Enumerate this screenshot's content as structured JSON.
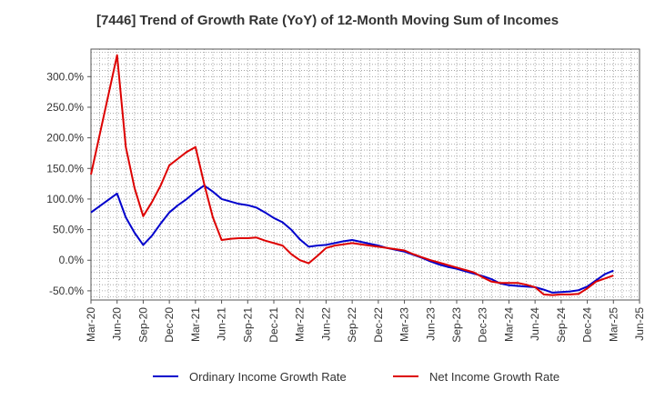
{
  "chart_data": {
    "type": "line",
    "title": "[7446]  Trend of Growth Rate (YoY) of 12-Month Moving Sum of Incomes",
    "x_tick_labels": [
      "Mar-20",
      "Jun-20",
      "Sep-20",
      "Dec-20",
      "Mar-21",
      "Jun-21",
      "Sep-21",
      "Dec-21",
      "Mar-22",
      "Jun-22",
      "Sep-22",
      "Dec-22",
      "Mar-23",
      "Jun-23",
      "Sep-23",
      "Dec-23",
      "Mar-24",
      "Jun-24",
      "Sep-24",
      "Dec-24",
      "Mar-25",
      "Jun-25"
    ],
    "y_ticks": [
      -50,
      0,
      50,
      100,
      150,
      200,
      250,
      300
    ],
    "y_tick_labels": [
      "-50.0%",
      "0.0%",
      "50.0%",
      "100.0%",
      "150.0%",
      "200.0%",
      "250.0%",
      "300.0%"
    ],
    "ylim": [
      -65,
      345
    ],
    "grid": true,
    "legend_position": "bottom",
    "series": [
      {
        "name": "Ordinary Income Growth Rate",
        "color": "#0000cc",
        "x": [
          0,
          3,
          4,
          5,
          6,
          7,
          8,
          9,
          10,
          11,
          12,
          13,
          14,
          15,
          16,
          17,
          18,
          19,
          20,
          21,
          22,
          23,
          24,
          25,
          26,
          27,
          28,
          29,
          30,
          31,
          32,
          33,
          34,
          35,
          36,
          37,
          38,
          39,
          40,
          41,
          42,
          43,
          44,
          45,
          46,
          47,
          48,
          49,
          50,
          51,
          52,
          53,
          54,
          55,
          56,
          57,
          58,
          59,
          60
        ],
        "values": [
          78,
          109,
          70,
          45,
          25,
          40,
          60,
          78,
          90,
          100,
          112,
          122,
          112,
          100,
          96,
          92,
          90,
          86,
          78,
          69,
          62,
          50,
          34,
          22,
          24,
          25,
          28,
          31,
          33,
          30,
          27,
          24,
          20,
          17,
          14,
          9,
          4,
          -2,
          -7,
          -11,
          -14,
          -18,
          -22,
          -26,
          -31,
          -38,
          -41,
          -42,
          -43,
          -44,
          -48,
          -53,
          -52,
          -51,
          -49,
          -43,
          -33,
          -23,
          -17
        ]
      },
      {
        "name": "Net Income Growth Rate",
        "color": "#dd0000",
        "x": [
          0,
          3,
          4,
          5,
          6,
          7,
          8,
          9,
          10,
          11,
          12,
          13,
          14,
          15,
          16,
          17,
          18,
          19,
          20,
          21,
          22,
          23,
          24,
          25,
          26,
          27,
          28,
          29,
          30,
          31,
          32,
          33,
          34,
          35,
          36,
          37,
          38,
          39,
          40,
          41,
          42,
          43,
          44,
          45,
          46,
          47,
          48,
          49,
          50,
          51,
          52,
          53,
          54,
          55,
          56,
          57,
          58,
          59,
          60
        ],
        "values": [
          140,
          335,
          185,
          118,
          72,
          95,
          122,
          155,
          166,
          177,
          185,
          125,
          70,
          33,
          35,
          36,
          36,
          37,
          32,
          28,
          24,
          10,
          0,
          -5,
          7,
          20,
          24,
          26,
          28,
          26,
          24,
          22,
          20,
          18,
          16,
          10,
          5,
          0,
          -4,
          -8,
          -12,
          -16,
          -20,
          -28,
          -35,
          -37,
          -37,
          -37,
          -40,
          -44,
          -56,
          -57,
          -56,
          -56,
          -55,
          -46,
          -35,
          -30,
          -25
        ]
      }
    ]
  }
}
